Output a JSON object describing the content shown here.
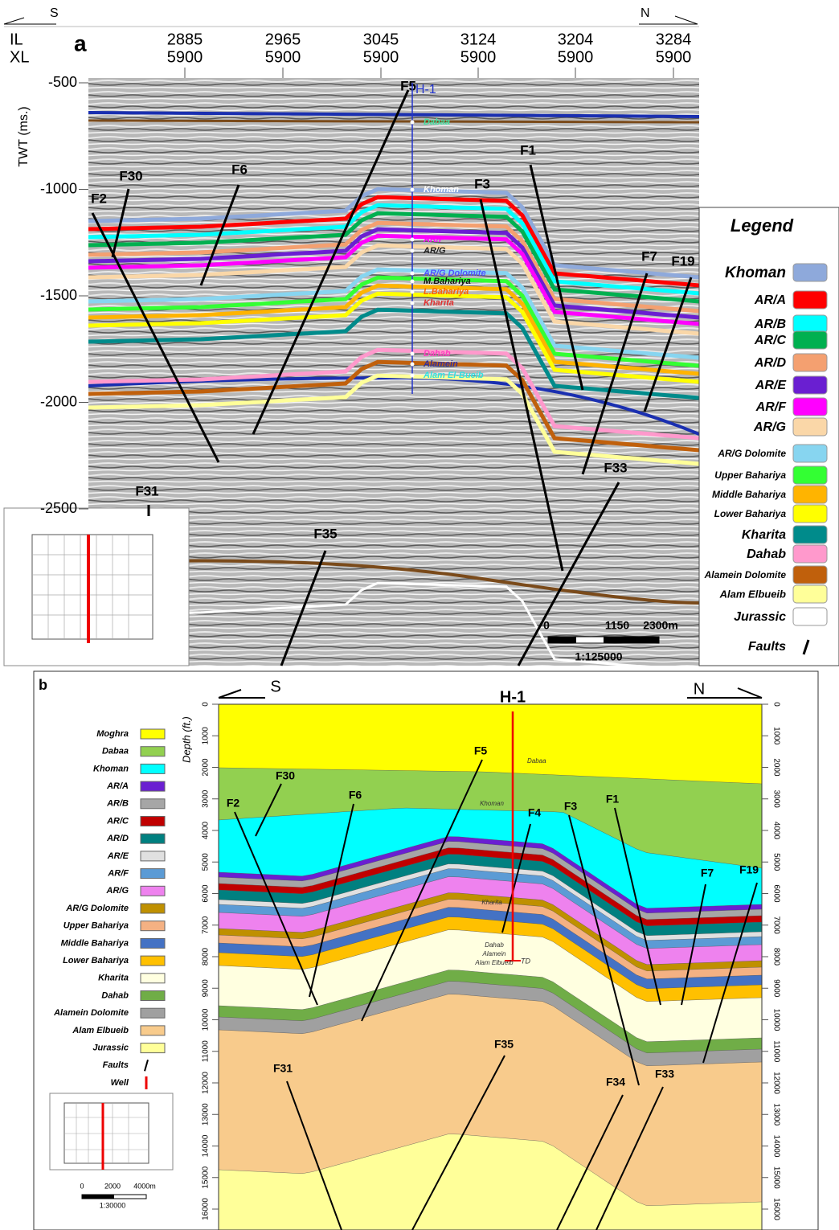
{
  "panel_a": {
    "label": "a",
    "direction_left": "S",
    "direction_right": "N",
    "il_label": "IL",
    "xl_label": "XL",
    "y_axis_label": "TWT (ms.)",
    "il_ticks": [
      2885,
      2965,
      3045,
      3124,
      3204,
      3284
    ],
    "xl_ticks": [
      5900,
      5900,
      5900,
      5900,
      5900,
      5900
    ],
    "y_ticks": [
      -500,
      -1000,
      -1500,
      -2000,
      -2500
    ],
    "faults": [
      "F2",
      "F30",
      "F6",
      "F5",
      "F3",
      "F1",
      "F7",
      "F19",
      "F33",
      "F31",
      "F35"
    ],
    "well": {
      "name": "H-1",
      "tops": [
        "Dabaa",
        "Khoman",
        "AR/F",
        "AR/G",
        "AR/G Dolomite",
        "M.Bahariya",
        "L.Bahariya",
        "Kharita",
        "Dahab",
        "Alamein",
        "Alam El-Bueib"
      ]
    },
    "legend": {
      "title": "Legend",
      "items": [
        {
          "label": "Khoman",
          "color": "#8ea9db"
        },
        {
          "label": "AR/A",
          "color": "#ff0000"
        },
        {
          "label": "AR/B",
          "color": "#00ffff"
        },
        {
          "label": "AR/C",
          "color": "#00b050"
        },
        {
          "label": "AR/D",
          "color": "#f4a070"
        },
        {
          "label": "AR/E",
          "color": "#6a1fd1"
        },
        {
          "label": "AR/F",
          "color": "#ff00ff"
        },
        {
          "label": "AR/G",
          "color": "#fad7a8"
        },
        {
          "label": "AR/G Dolomite",
          "color": "#87d5f0"
        },
        {
          "label": "Upper Bahariya",
          "color": "#33ff33"
        },
        {
          "label": "Middle Bahariya",
          "color": "#ffb400"
        },
        {
          "label": "Lower Bahariya",
          "color": "#ffff00"
        },
        {
          "label": "Kharita",
          "color": "#008b8b"
        },
        {
          "label": "Dahab",
          "color": "#ff99cc"
        },
        {
          "label": "Alamein Dolomite",
          "color": "#c0600c"
        },
        {
          "label": "Alam Elbueib",
          "color": "#ffff99"
        },
        {
          "label": "Jurassic",
          "color": "#ffffff"
        },
        {
          "label": "Faults"
        }
      ]
    },
    "scale": {
      "ticks": [
        "0",
        "1150",
        "2300m"
      ],
      "ratio": "1:125000"
    }
  },
  "panel_b": {
    "label": "b",
    "direction_left": "S",
    "direction_right": "N",
    "y_axis_label": "Depth (ft.)",
    "y_ticks": [
      0,
      1000,
      2000,
      3000,
      4000,
      5000,
      6000,
      7000,
      8000,
      9000,
      10000,
      11000,
      12000,
      13000,
      14000,
      15000,
      16000
    ],
    "faults": [
      "F2",
      "F30",
      "F6",
      "F5",
      "F4",
      "F3",
      "F1",
      "F7",
      "F19",
      "F31",
      "F35",
      "F34",
      "F33"
    ],
    "well": {
      "name": "H-1",
      "tops": [
        "Dabaa",
        "Khoman",
        "Kharita",
        "Dahab",
        "Alamein",
        "Alam Elbueib",
        "TD"
      ]
    },
    "legend": {
      "items": [
        {
          "label": "Moghra",
          "color": "#ffff00"
        },
        {
          "label": "Dabaa",
          "color": "#92d050"
        },
        {
          "label": "Khoman",
          "color": "#00ffff"
        },
        {
          "label": "AR/A",
          "color": "#6a1fd1"
        },
        {
          "label": "AR/B",
          "color": "#a6a6a6"
        },
        {
          "label": "AR/C",
          "color": "#c00000"
        },
        {
          "label": "AR/D",
          "color": "#008080"
        },
        {
          "label": "AR/E",
          "color": "#e0e0e0"
        },
        {
          "label": "AR/F",
          "color": "#5b9bd5"
        },
        {
          "label": "AR/G",
          "color": "#ee82ee"
        },
        {
          "label": "AR/G Dolomite",
          "color": "#bf9000"
        },
        {
          "label": "Upper Bahariya",
          "color": "#f4b183"
        },
        {
          "label": "Middle Bahariya",
          "color": "#4472c4"
        },
        {
          "label": "Lower Bahariya",
          "color": "#ffc000"
        },
        {
          "label": "Kharita",
          "color": "#ffffe0"
        },
        {
          "label": "Dahab",
          "color": "#70ad47"
        },
        {
          "label": "Alamein Dolomite",
          "color": "#a0a0a0"
        },
        {
          "label": "Alam Elbueib",
          "color": "#f8cb8c"
        },
        {
          "label": "Jurassic",
          "color": "#ffff99"
        },
        {
          "label": "Faults"
        },
        {
          "label": "Well"
        }
      ]
    },
    "scale": {
      "ticks": [
        "0",
        "2000",
        "4000m"
      ],
      "ratio": "1:30000"
    }
  }
}
